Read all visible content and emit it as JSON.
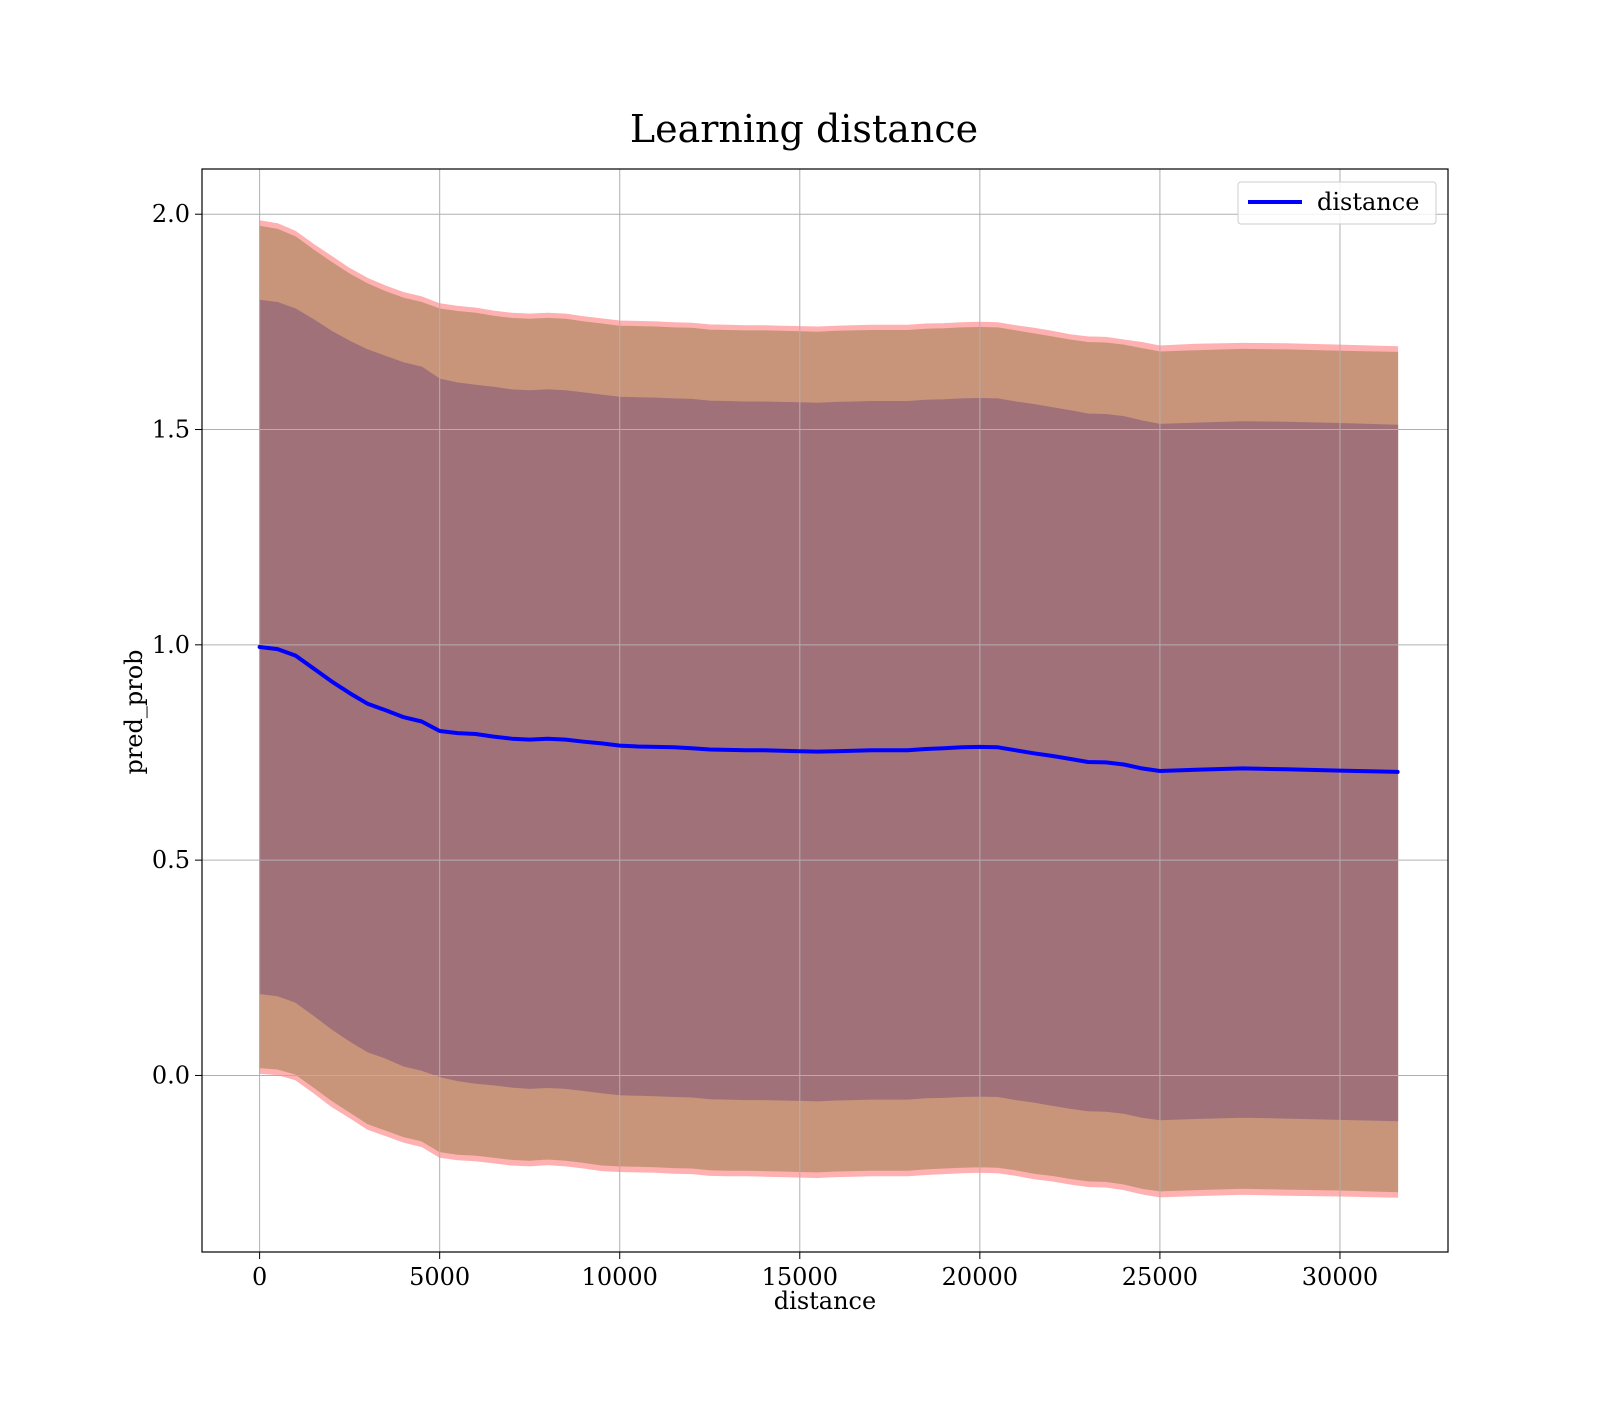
{
  "colors": {
    "mean_line": "#0000ff",
    "band_outer": "#ffb0b0",
    "band_middle": "#c8957a",
    "band_inner": "#a1717a",
    "grid": "#b0b0b0",
    "axis": "#000000",
    "background": "#ffffff"
  },
  "chart_data": {
    "type": "line",
    "title": "Learning distance",
    "xlabel": "distance",
    "ylabel": "pred_prob",
    "xlim": [
      -1600,
      33000
    ],
    "ylim": [
      -0.41,
      2.105
    ],
    "x_ticks": [
      0,
      5000,
      10000,
      15000,
      20000,
      25000,
      30000
    ],
    "x_tick_labels": [
      "0",
      "5000",
      "10000",
      "15000",
      "20000",
      "25000",
      "30000"
    ],
    "y_ticks": [
      0.0,
      0.5,
      1.0,
      1.5,
      2.0
    ],
    "y_tick_labels": [
      "0.0",
      "0.5",
      "1.0",
      "1.5",
      "2.0"
    ],
    "grid": true,
    "legend_position": "top-right",
    "x": [
      0,
      500,
      1000,
      1500,
      2000,
      2500,
      3000,
      3500,
      4000,
      4500,
      5000,
      5500,
      6000,
      6500,
      7000,
      7500,
      8000,
      8500,
      9000,
      9500,
      10000,
      10500,
      11000,
      11500,
      12000,
      12500,
      13000,
      13500,
      14000,
      14500,
      15000,
      15500,
      16000,
      16500,
      17000,
      17500,
      18000,
      18500,
      19000,
      19500,
      20000,
      20500,
      21000,
      21500,
      22000,
      22500,
      23000,
      23500,
      24000,
      24500,
      25000,
      26000,
      27300,
      28500,
      30000,
      31600
    ],
    "series": [
      {
        "name": "distance",
        "role": "mean",
        "values": [
          0.995,
          0.99,
          0.975,
          0.945,
          0.915,
          0.888,
          0.863,
          0.848,
          0.832,
          0.822,
          0.8,
          0.795,
          0.793,
          0.787,
          0.782,
          0.78,
          0.782,
          0.78,
          0.775,
          0.771,
          0.766,
          0.764,
          0.763,
          0.762,
          0.76,
          0.757,
          0.756,
          0.755,
          0.755,
          0.754,
          0.753,
          0.752,
          0.753,
          0.754,
          0.755,
          0.755,
          0.755,
          0.758,
          0.76,
          0.762,
          0.763,
          0.762,
          0.755,
          0.748,
          0.742,
          0.735,
          0.728,
          0.727,
          0.722,
          0.713,
          0.707,
          0.71,
          0.713,
          0.711,
          0.708,
          0.705
        ]
      }
    ],
    "bands": [
      {
        "role": "outer",
        "upper": [
          1.985,
          1.978,
          1.96,
          1.93,
          1.902,
          1.874,
          1.851,
          1.833,
          1.818,
          1.808,
          1.792,
          1.786,
          1.782,
          1.775,
          1.77,
          1.768,
          1.77,
          1.768,
          1.762,
          1.757,
          1.752,
          1.751,
          1.75,
          1.748,
          1.747,
          1.743,
          1.742,
          1.741,
          1.741,
          1.74,
          1.739,
          1.738,
          1.74,
          1.741,
          1.742,
          1.742,
          1.742,
          1.745,
          1.746,
          1.748,
          1.749,
          1.748,
          1.741,
          1.735,
          1.728,
          1.72,
          1.715,
          1.714,
          1.708,
          1.702,
          1.694,
          1.698,
          1.7,
          1.699,
          1.696,
          1.692
        ],
        "lower": [
          0.005,
          0.002,
          -0.01,
          -0.04,
          -0.072,
          -0.098,
          -0.125,
          -0.14,
          -0.155,
          -0.165,
          -0.19,
          -0.196,
          -0.198,
          -0.203,
          -0.208,
          -0.21,
          -0.207,
          -0.21,
          -0.215,
          -0.221,
          -0.223,
          -0.224,
          -0.225,
          -0.227,
          -0.228,
          -0.232,
          -0.233,
          -0.233,
          -0.234,
          -0.235,
          -0.236,
          -0.237,
          -0.235,
          -0.234,
          -0.233,
          -0.233,
          -0.233,
          -0.23,
          -0.228,
          -0.226,
          -0.225,
          -0.226,
          -0.232,
          -0.24,
          -0.245,
          -0.252,
          -0.258,
          -0.259,
          -0.265,
          -0.275,
          -0.282,
          -0.279,
          -0.276,
          -0.278,
          -0.28,
          -0.283
        ]
      },
      {
        "role": "middle",
        "upper": [
          1.972,
          1.965,
          1.947,
          1.917,
          1.888,
          1.861,
          1.838,
          1.82,
          1.805,
          1.795,
          1.78,
          1.774,
          1.77,
          1.763,
          1.758,
          1.756,
          1.758,
          1.756,
          1.75,
          1.745,
          1.74,
          1.739,
          1.738,
          1.736,
          1.735,
          1.731,
          1.73,
          1.729,
          1.729,
          1.728,
          1.727,
          1.726,
          1.728,
          1.729,
          1.73,
          1.73,
          1.73,
          1.733,
          1.734,
          1.736,
          1.737,
          1.736,
          1.729,
          1.722,
          1.715,
          1.708,
          1.702,
          1.701,
          1.696,
          1.688,
          1.68,
          1.683,
          1.686,
          1.685,
          1.682,
          1.679
        ],
        "lower": [
          0.018,
          0.015,
          0.003,
          -0.027,
          -0.058,
          -0.085,
          -0.112,
          -0.127,
          -0.142,
          -0.152,
          -0.177,
          -0.183,
          -0.185,
          -0.19,
          -0.195,
          -0.197,
          -0.194,
          -0.197,
          -0.202,
          -0.208,
          -0.21,
          -0.211,
          -0.212,
          -0.214,
          -0.215,
          -0.219,
          -0.22,
          -0.22,
          -0.221,
          -0.222,
          -0.223,
          -0.224,
          -0.222,
          -0.221,
          -0.22,
          -0.22,
          -0.22,
          -0.217,
          -0.215,
          -0.213,
          -0.212,
          -0.213,
          -0.219,
          -0.227,
          -0.232,
          -0.239,
          -0.245,
          -0.246,
          -0.252,
          -0.262,
          -0.268,
          -0.265,
          -0.262,
          -0.264,
          -0.266,
          -0.27
        ]
      },
      {
        "role": "inner",
        "upper": [
          1.8,
          1.795,
          1.78,
          1.755,
          1.728,
          1.705,
          1.685,
          1.67,
          1.655,
          1.645,
          1.617,
          1.608,
          1.603,
          1.598,
          1.592,
          1.59,
          1.592,
          1.59,
          1.585,
          1.58,
          1.575,
          1.574,
          1.573,
          1.571,
          1.57,
          1.566,
          1.565,
          1.564,
          1.564,
          1.563,
          1.562,
          1.561,
          1.563,
          1.564,
          1.565,
          1.565,
          1.565,
          1.568,
          1.569,
          1.571,
          1.572,
          1.571,
          1.564,
          1.558,
          1.551,
          1.544,
          1.536,
          1.535,
          1.53,
          1.52,
          1.512,
          1.515,
          1.518,
          1.517,
          1.514,
          1.51
        ],
        "lower": [
          0.19,
          0.185,
          0.17,
          0.14,
          0.108,
          0.08,
          0.055,
          0.04,
          0.022,
          0.012,
          -0.003,
          -0.012,
          -0.018,
          -0.022,
          -0.027,
          -0.03,
          -0.028,
          -0.03,
          -0.035,
          -0.04,
          -0.045,
          -0.046,
          -0.047,
          -0.049,
          -0.05,
          -0.054,
          -0.055,
          -0.056,
          -0.056,
          -0.057,
          -0.058,
          -0.059,
          -0.057,
          -0.056,
          -0.055,
          -0.055,
          -0.055,
          -0.052,
          -0.051,
          -0.049,
          -0.048,
          -0.049,
          -0.056,
          -0.062,
          -0.069,
          -0.076,
          -0.082,
          -0.083,
          -0.088,
          -0.097,
          -0.103,
          -0.1,
          -0.097,
          -0.099,
          -0.102,
          -0.105
        ]
      }
    ]
  }
}
